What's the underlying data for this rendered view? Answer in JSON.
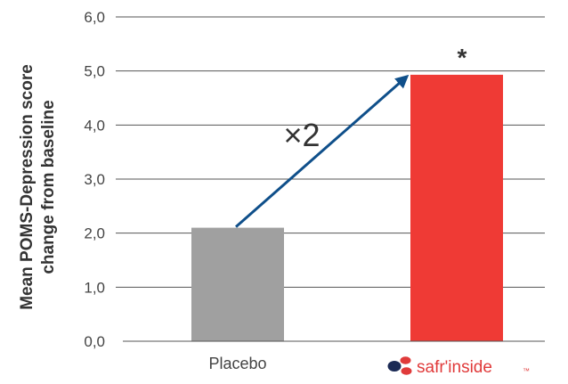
{
  "chart_data": {
    "type": "bar",
    "categories": [
      "Placebo",
      "safr'inside"
    ],
    "values": [
      2.1,
      4.93
    ],
    "ylabel_line1": "Mean POMS-Depression score",
    "ylabel_line2": "change from baseline",
    "ylim": [
      0,
      6
    ],
    "yticks": [
      "0,0",
      "1,0",
      "2,0",
      "3,0",
      "4,0",
      "5,0",
      "6,0"
    ],
    "grid": true,
    "bar_colors": [
      "#a0a0a0",
      "#ef3a35"
    ],
    "significance_marker": "*",
    "ratio_annotation": "×2",
    "arrow_color": "#0f4f8a",
    "brand": {
      "name": "safr'inside",
      "trademark": "™"
    }
  }
}
